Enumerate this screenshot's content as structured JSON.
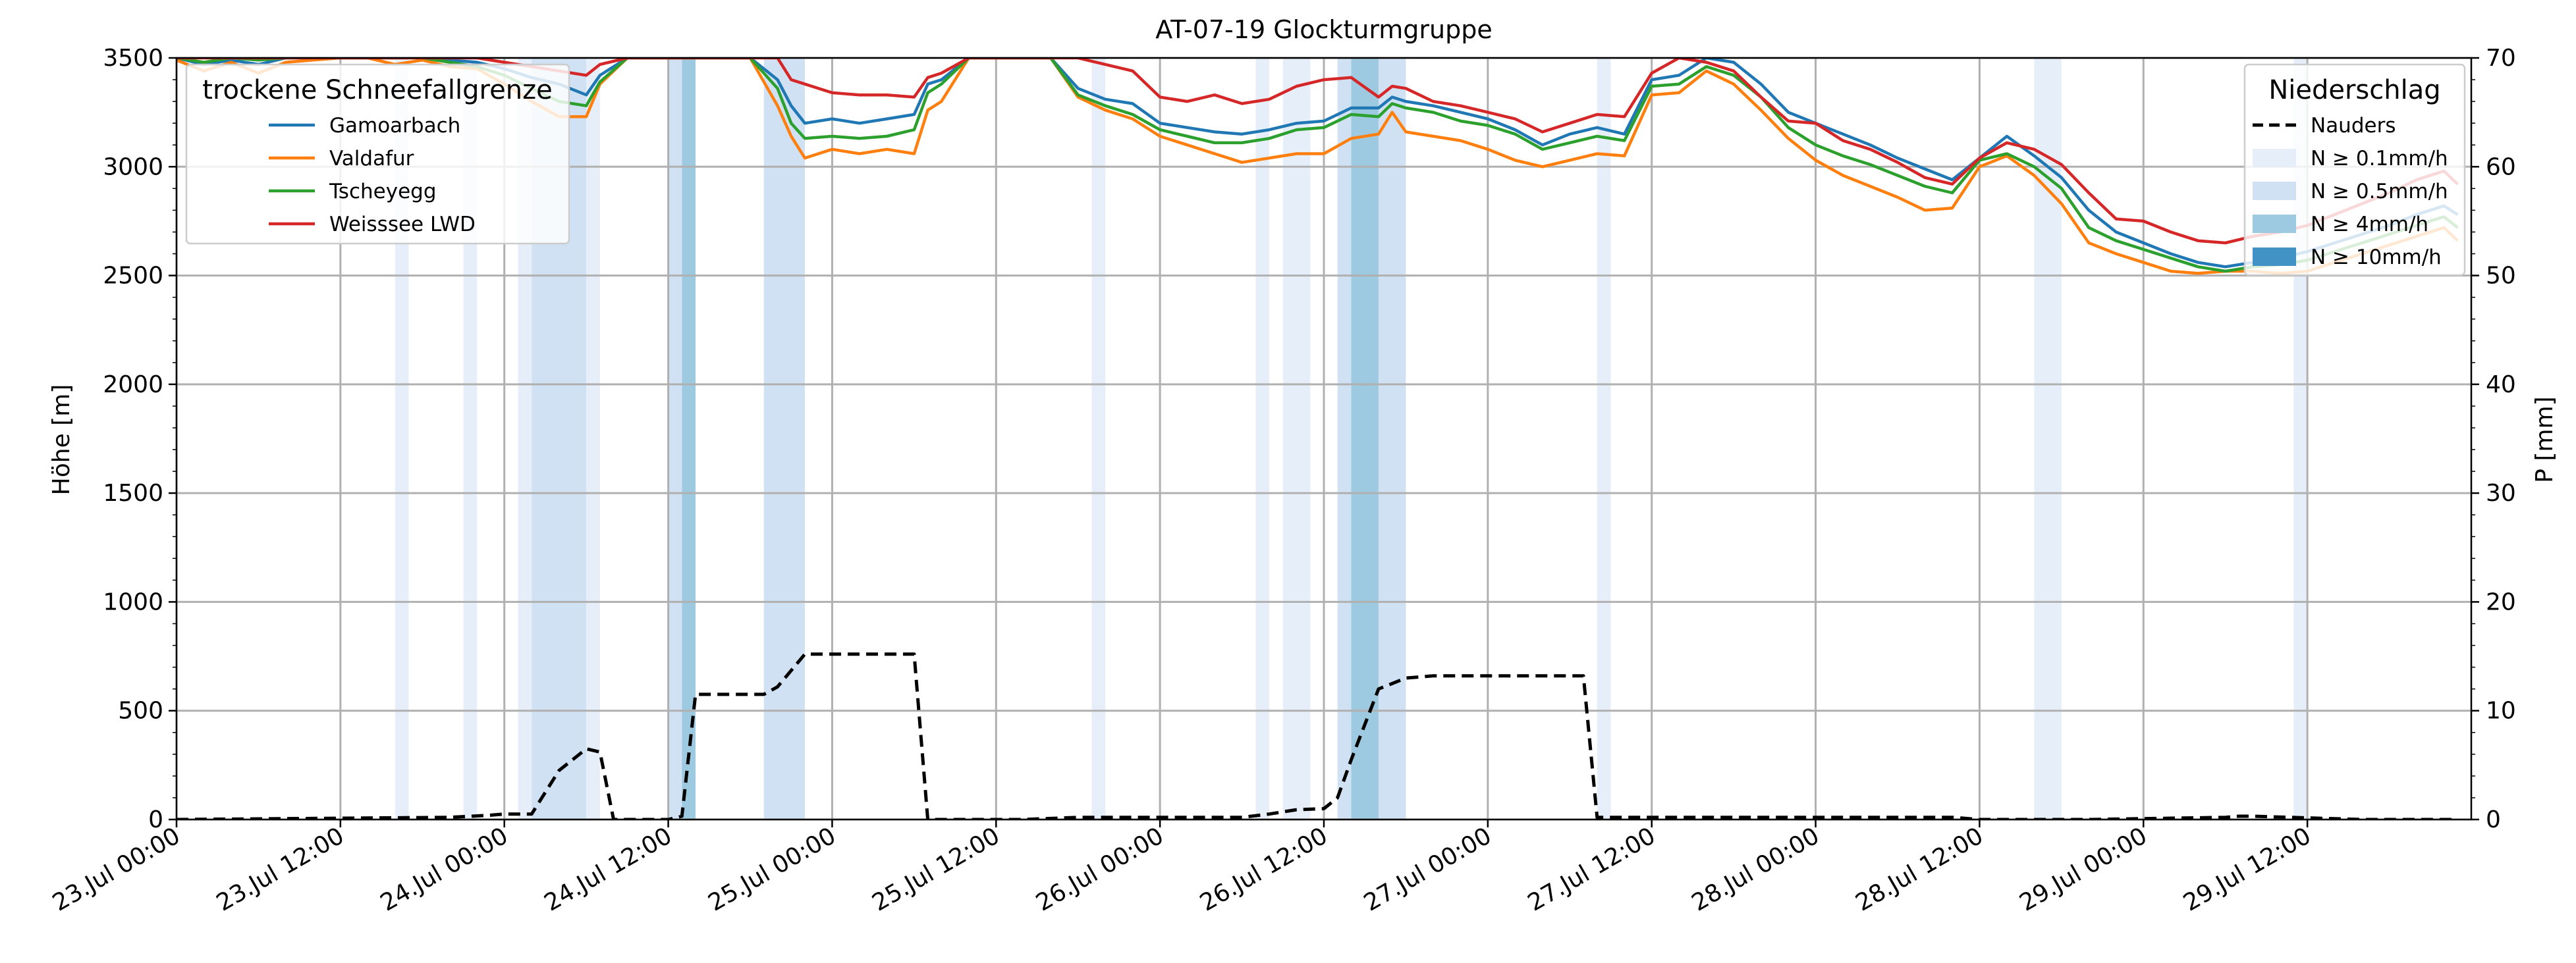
{
  "chart_data": {
    "type": "line",
    "title": "AT-07-19 Glockturmgruppe",
    "ylabel": "Höhe [m]",
    "y2label": "P [mm]",
    "ylim": [
      0,
      3500
    ],
    "y2lim": [
      0,
      70
    ],
    "xlim": [
      "2023-07-23 00:00",
      "2023-07-30 00:00"
    ],
    "yticks": [
      "0",
      "500",
      "1000",
      "1500",
      "2000",
      "2500",
      "3000",
      "3500"
    ],
    "y2ticks": [
      "0",
      "10",
      "20",
      "30",
      "40",
      "50",
      "60",
      "70"
    ],
    "xticks": [
      "23.Jul 00:00",
      "23.Jul 12:00",
      "24.Jul 00:00",
      "24.Jul 12:00",
      "25.Jul 00:00",
      "25.Jul 12:00",
      "26.Jul 00:00",
      "26.Jul 12:00",
      "27.Jul 00:00",
      "27.Jul 12:00",
      "28.Jul 00:00",
      "28.Jul 12:00",
      "29.Jul 00:00",
      "29.Jul 12:00"
    ],
    "grid": true,
    "legend_snowline": {
      "title": "trockene Schneefallgrenze",
      "placement": "top-left",
      "entries": [
        "Gamoarbach",
        "Valdafur",
        "Tscheyegg",
        "Weisssee LWD"
      ]
    },
    "legend_precip": {
      "title": "Niederschlag",
      "placement": "top-right",
      "entries": [
        "Nauders",
        "N ≥ 0.1mm/h",
        "N ≥ 0.5mm/h",
        "N ≥ 4mm/h",
        "N ≥ 10mm/h"
      ]
    },
    "colors": {
      "Gamoarbach": "#1f77b4",
      "Valdafur": "#ff7f0e",
      "Tscheyegg": "#2ca02c",
      "Weisssee LWD": "#d62728",
      "Nauders": "#000000",
      "band_0.1": "#e6eff9",
      "band_0.5": "#cfe1f2",
      "band_4": "#9ecae1",
      "band_10": "#4292c6"
    },
    "x_unit": "hours since 23.Jul 00:00",
    "precip_bands": [
      {
        "start": 16,
        "end": 17,
        "level": "0.1"
      },
      {
        "start": 21,
        "end": 22,
        "level": "0.1"
      },
      {
        "start": 25,
        "end": 26,
        "level": "0.1"
      },
      {
        "start": 26,
        "end": 30,
        "level": "0.5"
      },
      {
        "start": 30,
        "end": 31,
        "level": "0.1"
      },
      {
        "start": 36,
        "end": 37,
        "level": "0.5"
      },
      {
        "start": 37,
        "end": 38,
        "level": "4"
      },
      {
        "start": 43,
        "end": 46,
        "level": "0.5"
      },
      {
        "start": 67,
        "end": 68,
        "level": "0.1"
      },
      {
        "start": 79,
        "end": 80,
        "level": "0.1"
      },
      {
        "start": 81,
        "end": 83,
        "level": "0.1"
      },
      {
        "start": 85,
        "end": 86,
        "level": "0.5"
      },
      {
        "start": 86,
        "end": 88,
        "level": "4"
      },
      {
        "start": 88,
        "end": 90,
        "level": "0.5"
      },
      {
        "start": 104,
        "end": 105,
        "level": "0.1"
      },
      {
        "start": 136,
        "end": 138,
        "level": "0.1"
      },
      {
        "start": 155,
        "end": 156,
        "level": "0.1"
      }
    ],
    "series": [
      {
        "name": "Gamoarbach",
        "x": [
          0,
          2,
          4,
          6,
          8,
          10,
          12,
          14,
          16,
          18,
          20,
          22,
          24,
          26,
          28,
          30,
          31,
          33,
          36,
          37,
          38,
          40,
          42,
          44,
          45,
          46,
          48,
          50,
          52,
          54,
          55,
          56,
          58,
          60,
          62,
          64,
          66,
          68,
          70,
          72,
          74,
          76,
          78,
          80,
          82,
          84,
          86,
          88,
          89,
          90,
          92,
          94,
          96,
          98,
          100,
          102,
          104,
          106,
          108,
          110,
          112,
          114,
          116,
          118,
          120,
          122,
          124,
          126,
          128,
          130,
          132,
          134,
          136,
          138,
          140,
          142,
          144,
          146,
          148,
          150,
          152,
          154,
          156,
          158,
          160,
          162,
          164,
          166,
          167
        ],
        "y": [
          3500,
          3470,
          3490,
          3470,
          3500,
          3500,
          3500,
          3500,
          3500,
          3510,
          3490,
          3480,
          3450,
          3410,
          3380,
          3330,
          3420,
          3500,
          3500,
          3500,
          3500,
          3500,
          3500,
          3400,
          3280,
          3200,
          3220,
          3200,
          3220,
          3240,
          3380,
          3400,
          3500,
          3500,
          3500,
          3500,
          3360,
          3310,
          3290,
          3200,
          3180,
          3160,
          3150,
          3170,
          3200,
          3210,
          3270,
          3270,
          3320,
          3300,
          3280,
          3250,
          3220,
          3170,
          3100,
          3150,
          3180,
          3150,
          3400,
          3420,
          3500,
          3480,
          3380,
          3250,
          3200,
          3150,
          3100,
          3040,
          2990,
          2940,
          3040,
          3140,
          3050,
          2950,
          2800,
          2700,
          2650,
          2600,
          2560,
          2540,
          2560,
          2580,
          2610,
          2650,
          2690,
          2730,
          2780,
          2820,
          2780
        ]
      },
      {
        "name": "Valdafur",
        "x": [
          0,
          2,
          4,
          6,
          8,
          10,
          12,
          14,
          16,
          18,
          20,
          22,
          24,
          26,
          28,
          30,
          31,
          33,
          36,
          37,
          38,
          40,
          42,
          44,
          45,
          46,
          48,
          50,
          52,
          54,
          55,
          56,
          58,
          60,
          62,
          64,
          66,
          68,
          70,
          72,
          74,
          76,
          78,
          80,
          82,
          84,
          86,
          88,
          89,
          90,
          92,
          94,
          96,
          98,
          100,
          102,
          104,
          106,
          108,
          110,
          112,
          114,
          116,
          118,
          120,
          122,
          124,
          126,
          128,
          130,
          132,
          134,
          136,
          138,
          140,
          142,
          144,
          146,
          148,
          150,
          152,
          154,
          156,
          158,
          160,
          162,
          164,
          166,
          167
        ],
        "y": [
          3490,
          3440,
          3480,
          3430,
          3480,
          3490,
          3500,
          3500,
          3470,
          3490,
          3460,
          3450,
          3380,
          3300,
          3230,
          3230,
          3380,
          3500,
          3500,
          3500,
          3500,
          3500,
          3500,
          3280,
          3140,
          3040,
          3080,
          3060,
          3080,
          3060,
          3260,
          3300,
          3500,
          3500,
          3500,
          3500,
          3320,
          3260,
          3220,
          3140,
          3100,
          3060,
          3020,
          3040,
          3060,
          3060,
          3130,
          3150,
          3250,
          3160,
          3140,
          3120,
          3080,
          3030,
          3000,
          3030,
          3060,
          3050,
          3330,
          3340,
          3440,
          3380,
          3260,
          3130,
          3030,
          2960,
          2910,
          2860,
          2800,
          2810,
          3000,
          3050,
          2960,
          2830,
          2650,
          2600,
          2560,
          2520,
          2510,
          2520,
          2520,
          2510,
          2520,
          2560,
          2600,
          2640,
          2680,
          2720,
          2660
        ]
      },
      {
        "name": "Tscheyegg",
        "x": [
          0,
          2,
          4,
          6,
          8,
          10,
          12,
          14,
          16,
          18,
          20,
          22,
          24,
          26,
          28,
          30,
          31,
          33,
          36,
          37,
          38,
          40,
          42,
          44,
          45,
          46,
          48,
          50,
          52,
          54,
          55,
          56,
          58,
          60,
          62,
          64,
          66,
          68,
          70,
          72,
          74,
          76,
          78,
          80,
          82,
          84,
          86,
          88,
          89,
          90,
          92,
          94,
          96,
          98,
          100,
          102,
          104,
          106,
          108,
          110,
          112,
          114,
          116,
          118,
          120,
          122,
          124,
          126,
          128,
          130,
          132,
          134,
          136,
          138,
          140,
          142,
          144,
          146,
          148,
          150,
          152,
          154,
          156,
          158,
          160,
          162,
          164,
          166,
          167
        ],
        "y": [
          3500,
          3480,
          3500,
          3490,
          3500,
          3500,
          3500,
          3500,
          3500,
          3500,
          3480,
          3460,
          3420,
          3360,
          3300,
          3280,
          3390,
          3500,
          3500,
          3500,
          3500,
          3500,
          3500,
          3360,
          3200,
          3130,
          3140,
          3130,
          3140,
          3170,
          3340,
          3380,
          3500,
          3500,
          3500,
          3500,
          3330,
          3280,
          3240,
          3170,
          3140,
          3110,
          3110,
          3130,
          3170,
          3180,
          3240,
          3230,
          3290,
          3270,
          3250,
          3210,
          3190,
          3150,
          3080,
          3110,
          3140,
          3120,
          3370,
          3380,
          3460,
          3420,
          3320,
          3180,
          3100,
          3050,
          3010,
          2960,
          2910,
          2880,
          3030,
          3060,
          3000,
          2900,
          2720,
          2660,
          2620,
          2580,
          2540,
          2520,
          2540,
          2550,
          2570,
          2610,
          2650,
          2690,
          2730,
          2770,
          2720
        ]
      },
      {
        "name": "Weisssee LWD",
        "x": [
          0,
          2,
          4,
          6,
          8,
          10,
          12,
          14,
          16,
          18,
          20,
          22,
          24,
          26,
          28,
          30,
          31,
          33,
          36,
          37,
          38,
          40,
          42,
          44,
          45,
          46,
          48,
          50,
          52,
          54,
          55,
          56,
          58,
          60,
          62,
          64,
          66,
          68,
          70,
          72,
          74,
          76,
          78,
          80,
          82,
          84,
          86,
          88,
          89,
          90,
          92,
          94,
          96,
          98,
          100,
          102,
          104,
          106,
          108,
          110,
          112,
          114,
          116,
          118,
          120,
          122,
          124,
          126,
          128,
          130,
          132,
          134,
          136,
          138,
          140,
          142,
          144,
          146,
          148,
          150,
          152,
          154,
          156,
          158,
          160,
          162,
          164,
          166,
          167
        ],
        "y": [
          3500,
          3500,
          3500,
          3500,
          3500,
          3500,
          3500,
          3500,
          3500,
          3500,
          3500,
          3500,
          3480,
          3460,
          3440,
          3420,
          3470,
          3500,
          3500,
          3500,
          3500,
          3500,
          3500,
          3500,
          3400,
          3380,
          3340,
          3330,
          3330,
          3320,
          3410,
          3430,
          3500,
          3500,
          3500,
          3500,
          3500,
          3470,
          3440,
          3320,
          3300,
          3330,
          3290,
          3310,
          3370,
          3400,
          3410,
          3320,
          3370,
          3360,
          3300,
          3280,
          3250,
          3220,
          3160,
          3200,
          3240,
          3230,
          3430,
          3500,
          3480,
          3440,
          3320,
          3210,
          3200,
          3120,
          3080,
          3020,
          2950,
          2920,
          3040,
          3110,
          3080,
          3010,
          2880,
          2760,
          2750,
          2700,
          2660,
          2650,
          2680,
          2700,
          2730,
          2780,
          2830,
          2880,
          2940,
          2980,
          2920
        ]
      }
    ],
    "precip_series": {
      "name": "Nauders",
      "style": "dashed",
      "axis": "right",
      "x": [
        0,
        20,
        23,
        24,
        26,
        28,
        30,
        31,
        32,
        34,
        36,
        37,
        38,
        40,
        42,
        43,
        44,
        46,
        48,
        50,
        52,
        54,
        55,
        56,
        58,
        60,
        62,
        66,
        74,
        78,
        80,
        82,
        84,
        85,
        86,
        88,
        90,
        92,
        96,
        100,
        102,
        103,
        104,
        105,
        106,
        110,
        113,
        120,
        130,
        132,
        140,
        150,
        151,
        152,
        160,
        167
      ],
      "y": [
        0,
        0.2,
        0.4,
        0.5,
        0.5,
        4.5,
        6.5,
        6.2,
        0,
        0,
        0,
        0.3,
        11.5,
        11.5,
        11.5,
        11.5,
        12.2,
        15.2,
        15.2,
        15.2,
        15.2,
        15.2,
        0,
        0,
        0,
        0,
        0,
        0.2,
        0.2,
        0.2,
        0.5,
        0.9,
        1.0,
        2.0,
        5.5,
        12.0,
        13.0,
        13.2,
        13.2,
        13.2,
        13.2,
        13.2,
        0.2,
        0.2,
        0.2,
        0.2,
        0.2,
        0.2,
        0.2,
        0,
        0,
        0.2,
        0.3,
        0.3,
        0,
        0
      ]
    }
  }
}
